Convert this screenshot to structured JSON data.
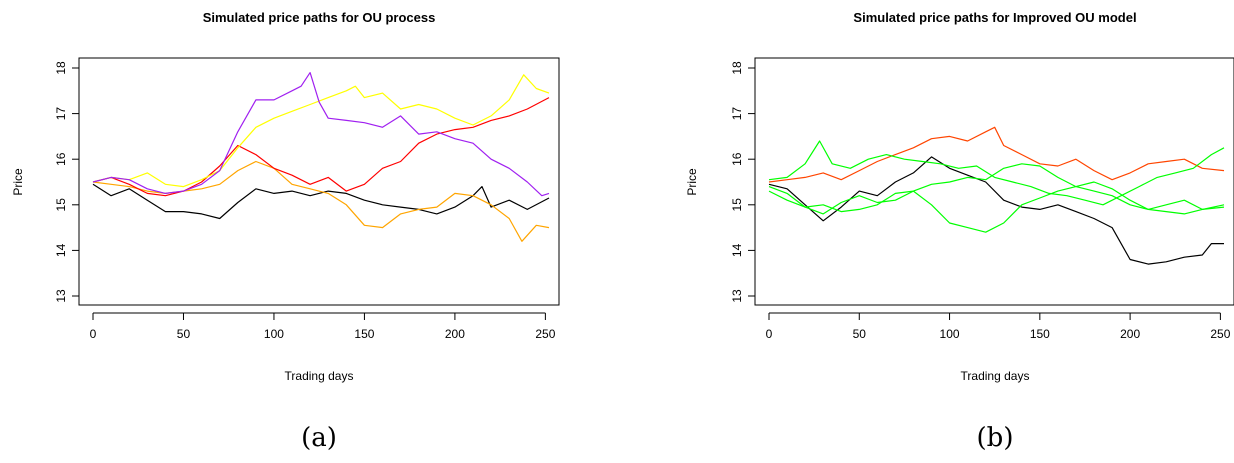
{
  "chart_data": [
    {
      "type": "line",
      "title": "Simulated price paths for OU process",
      "xlabel": "Trading days",
      "ylabel": "Price",
      "caption": "(a)",
      "xlim": [
        0,
        252
      ],
      "ylim": [
        13,
        18
      ],
      "xticks": [
        0,
        50,
        100,
        150,
        200,
        250
      ],
      "yticks": [
        13,
        14,
        15,
        16,
        17,
        18
      ],
      "grid": false,
      "series": [
        {
          "color": "#000000",
          "x": [
            0,
            10,
            20,
            30,
            40,
            50,
            60,
            70,
            80,
            90,
            100,
            110,
            120,
            130,
            140,
            150,
            160,
            170,
            180,
            190,
            200,
            210,
            215,
            220,
            230,
            240,
            252
          ],
          "y": [
            15.45,
            15.2,
            15.35,
            15.1,
            14.85,
            14.85,
            14.8,
            14.7,
            15.05,
            15.35,
            15.25,
            15.3,
            15.2,
            15.3,
            15.25,
            15.1,
            15.0,
            14.95,
            14.9,
            14.8,
            14.95,
            15.2,
            15.4,
            14.95,
            15.1,
            14.9,
            15.15
          ]
        },
        {
          "color": "#ffa500",
          "x": [
            0,
            10,
            20,
            30,
            40,
            50,
            60,
            70,
            80,
            90,
            100,
            110,
            120,
            130,
            140,
            150,
            160,
            170,
            180,
            190,
            200,
            210,
            220,
            230,
            237,
            245,
            252
          ],
          "y": [
            15.5,
            15.45,
            15.4,
            15.3,
            15.25,
            15.3,
            15.35,
            15.45,
            15.75,
            15.95,
            15.8,
            15.45,
            15.35,
            15.25,
            15.0,
            14.55,
            14.5,
            14.8,
            14.9,
            14.95,
            15.25,
            15.2,
            15.0,
            14.7,
            14.2,
            14.55,
            14.5
          ]
        },
        {
          "color": "#ff0000",
          "x": [
            0,
            10,
            20,
            30,
            40,
            50,
            60,
            70,
            80,
            90,
            100,
            110,
            120,
            130,
            140,
            150,
            160,
            170,
            180,
            190,
            200,
            210,
            220,
            230,
            240,
            252
          ],
          "y": [
            15.5,
            15.6,
            15.45,
            15.25,
            15.2,
            15.3,
            15.5,
            15.85,
            16.3,
            16.1,
            15.8,
            15.65,
            15.45,
            15.6,
            15.3,
            15.45,
            15.8,
            15.95,
            16.35,
            16.55,
            16.65,
            16.7,
            16.85,
            16.95,
            17.1,
            17.35
          ]
        },
        {
          "color": "#ffff00",
          "x": [
            0,
            10,
            20,
            30,
            40,
            50,
            60,
            70,
            80,
            90,
            100,
            110,
            120,
            130,
            140,
            145,
            150,
            160,
            170,
            180,
            190,
            200,
            210,
            220,
            230,
            238,
            245,
            252
          ],
          "y": [
            15.5,
            15.6,
            15.55,
            15.7,
            15.45,
            15.4,
            15.55,
            15.75,
            16.25,
            16.7,
            16.9,
            17.05,
            17.2,
            17.35,
            17.5,
            17.6,
            17.35,
            17.45,
            17.1,
            17.2,
            17.1,
            16.9,
            16.75,
            16.95,
            17.3,
            17.85,
            17.55,
            17.45
          ]
        },
        {
          "color": "#a020f0",
          "x": [
            0,
            10,
            20,
            30,
            40,
            50,
            60,
            70,
            80,
            90,
            100,
            110,
            115,
            120,
            125,
            130,
            140,
            150,
            160,
            170,
            180,
            190,
            200,
            210,
            220,
            230,
            240,
            248,
            252
          ],
          "y": [
            15.5,
            15.6,
            15.55,
            15.35,
            15.25,
            15.3,
            15.45,
            15.75,
            16.6,
            17.3,
            17.3,
            17.5,
            17.6,
            17.9,
            17.25,
            16.9,
            16.85,
            16.8,
            16.7,
            16.95,
            16.55,
            16.6,
            16.45,
            16.35,
            16.0,
            15.8,
            15.5,
            15.2,
            15.25
          ]
        }
      ]
    },
    {
      "type": "line",
      "title": "Simulated price paths for Improved OU model",
      "xlabel": "Trading days",
      "ylabel": "Price",
      "caption": "(b)",
      "xlim": [
        0,
        252
      ],
      "ylim": [
        13,
        18
      ],
      "xticks": [
        0,
        50,
        100,
        150,
        200,
        250
      ],
      "yticks": [
        13,
        14,
        15,
        16,
        17,
        18
      ],
      "grid": false,
      "series": [
        {
          "color": "#000000",
          "x": [
            0,
            10,
            20,
            30,
            40,
            50,
            60,
            70,
            80,
            90,
            100,
            110,
            120,
            130,
            140,
            150,
            160,
            170,
            180,
            190,
            200,
            210,
            220,
            230,
            240,
            245,
            252
          ],
          "y": [
            15.45,
            15.35,
            15.0,
            14.65,
            14.95,
            15.3,
            15.2,
            15.5,
            15.7,
            16.05,
            15.8,
            15.65,
            15.5,
            15.1,
            14.95,
            14.9,
            15.0,
            14.85,
            14.7,
            14.5,
            13.8,
            13.7,
            13.75,
            13.85,
            13.9,
            14.15,
            14.15
          ]
        },
        {
          "color": "#ff4500",
          "x": [
            0,
            10,
            20,
            30,
            40,
            50,
            60,
            70,
            80,
            90,
            100,
            110,
            120,
            125,
            130,
            140,
            150,
            160,
            170,
            180,
            190,
            200,
            210,
            220,
            230,
            240,
            252
          ],
          "y": [
            15.5,
            15.55,
            15.6,
            15.7,
            15.55,
            15.75,
            15.95,
            16.1,
            16.25,
            16.45,
            16.5,
            16.4,
            16.6,
            16.7,
            16.3,
            16.1,
            15.9,
            15.85,
            16.0,
            15.75,
            15.55,
            15.7,
            15.9,
            15.95,
            16.0,
            15.8,
            15.75
          ]
        },
        {
          "color": "#00ff00",
          "x": [
            0,
            10,
            20,
            28,
            35,
            45,
            55,
            65,
            75,
            85,
            95,
            105,
            115,
            125,
            135,
            145,
            155,
            165,
            175,
            185,
            195,
            205,
            215,
            225,
            235,
            245,
            252
          ],
          "y": [
            15.55,
            15.6,
            15.9,
            16.4,
            15.9,
            15.8,
            16.0,
            16.1,
            16.0,
            15.95,
            15.9,
            15.8,
            15.85,
            15.6,
            15.5,
            15.4,
            15.25,
            15.2,
            15.1,
            15.0,
            15.2,
            15.4,
            15.6,
            15.7,
            15.8,
            16.1,
            16.25
          ]
        },
        {
          "color": "#00ff00",
          "x": [
            0,
            10,
            20,
            30,
            40,
            50,
            60,
            70,
            80,
            90,
            100,
            110,
            120,
            130,
            140,
            150,
            160,
            170,
            180,
            190,
            200,
            210,
            220,
            230,
            240,
            252
          ],
          "y": [
            15.4,
            15.25,
            14.95,
            14.8,
            15.05,
            15.2,
            15.05,
            15.1,
            15.3,
            15.0,
            14.6,
            14.5,
            14.4,
            14.6,
            15.0,
            15.15,
            15.3,
            15.4,
            15.5,
            15.35,
            15.1,
            14.9,
            15.0,
            15.1,
            14.9,
            15.0
          ]
        },
        {
          "color": "#00ff00",
          "x": [
            0,
            10,
            20,
            30,
            40,
            50,
            60,
            70,
            80,
            90,
            100,
            110,
            120,
            130,
            140,
            150,
            160,
            170,
            180,
            190,
            200,
            210,
            220,
            230,
            240,
            252
          ],
          "y": [
            15.3,
            15.1,
            14.95,
            15.0,
            14.85,
            14.9,
            15.0,
            15.25,
            15.3,
            15.45,
            15.5,
            15.6,
            15.55,
            15.8,
            15.9,
            15.85,
            15.6,
            15.4,
            15.3,
            15.2,
            15.0,
            14.9,
            14.85,
            14.8,
            14.9,
            14.95
          ]
        }
      ]
    }
  ]
}
